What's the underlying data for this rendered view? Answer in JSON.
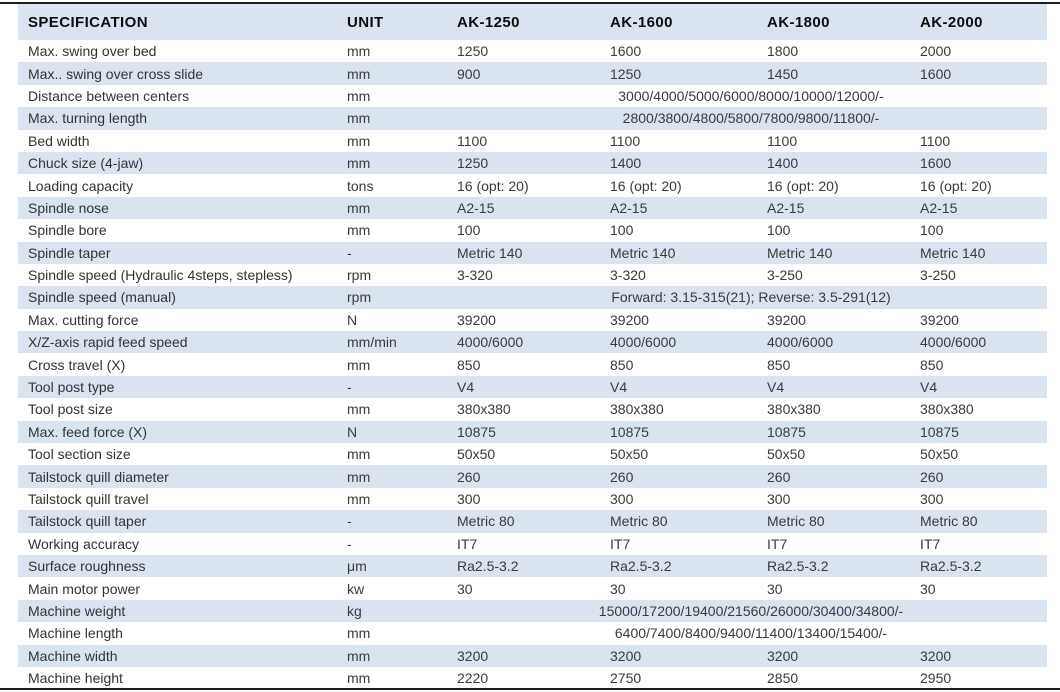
{
  "colors": {
    "stripe_blue": "#d9e4f0",
    "rule_dark": "#1f1f1f",
    "text": "#3a3a3a"
  },
  "table": {
    "headers": [
      "SPECIFICATION",
      "UNIT",
      "AK-1250",
      "AK-1600",
      "AK-1800",
      "AK-2000"
    ],
    "rows": [
      {
        "spec": "Max. swing over bed",
        "unit": "mm",
        "values": [
          "1250",
          "1600",
          "1800",
          "2000"
        ]
      },
      {
        "spec": "Max.. swing over cross slide",
        "unit": "mm",
        "values": [
          "900",
          "1250",
          "1450",
          "1600"
        ]
      },
      {
        "spec": "Distance between centers",
        "unit": "mm",
        "span": "3000/4000/5000/6000/8000/10000/12000/-"
      },
      {
        "spec": "Max. turning length",
        "unit": "mm",
        "span": "2800/3800/4800/5800/7800/9800/11800/-"
      },
      {
        "spec": "Bed width",
        "unit": "mm",
        "values": [
          "1100",
          "1100",
          "1100",
          "1100"
        ]
      },
      {
        "spec": "Chuck size (4-jaw)",
        "unit": "mm",
        "values": [
          "1250",
          "1400",
          "1400",
          "1600"
        ]
      },
      {
        "spec": "Loading capacity",
        "unit": "tons",
        "values": [
          "16 (opt: 20)",
          "16 (opt: 20)",
          "16 (opt: 20)",
          "16 (opt: 20)"
        ]
      },
      {
        "spec": "Spindle nose",
        "unit": "mm",
        "values": [
          "A2-15",
          "A2-15",
          "A2-15",
          "A2-15"
        ]
      },
      {
        "spec": "Spindle bore",
        "unit": "mm",
        "values": [
          "100",
          "100",
          "100",
          "100"
        ]
      },
      {
        "spec": "Spindle taper",
        "unit": "-",
        "values": [
          "Metric 140",
          "Metric 140",
          "Metric 140",
          "Metric 140"
        ]
      },
      {
        "spec": "Spindle speed (Hydraulic 4steps, stepless)",
        "unit": "rpm",
        "values": [
          "3-320",
          "3-320",
          "3-250",
          "3-250"
        ]
      },
      {
        "spec": "Spindle speed (manual)",
        "unit": "rpm",
        "span": "Forward: 3.15-315(21); Reverse: 3.5-291(12)"
      },
      {
        "spec": "Max. cutting force",
        "unit": "N",
        "values": [
          "39200",
          "39200",
          "39200",
          "39200"
        ]
      },
      {
        "spec": "X/Z-axis rapid feed speed",
        "unit": "mm/min",
        "values": [
          "4000/6000",
          "4000/6000",
          "4000/6000",
          "4000/6000"
        ]
      },
      {
        "spec": "Cross travel (X)",
        "unit": "mm",
        "values": [
          "850",
          "850",
          "850",
          "850"
        ]
      },
      {
        "spec": "Tool post type",
        "unit": "-",
        "values": [
          "V4",
          "V4",
          "V4",
          "V4"
        ]
      },
      {
        "spec": "Tool post size",
        "unit": "mm",
        "values": [
          "380x380",
          "380x380",
          "380x380",
          "380x380"
        ]
      },
      {
        "spec": "Max. feed force (X)",
        "unit": "N",
        "values": [
          "10875",
          "10875",
          "10875",
          "10875"
        ]
      },
      {
        "spec": "Tool section size",
        "unit": "mm",
        "values": [
          "50x50",
          "50x50",
          "50x50",
          "50x50"
        ]
      },
      {
        "spec": "Tailstock quill diameter",
        "unit": "mm",
        "values": [
          "260",
          "260",
          "260",
          "260"
        ]
      },
      {
        "spec": "Tailstock quill travel",
        "unit": "mm",
        "values": [
          "300",
          "300",
          "300",
          "300"
        ]
      },
      {
        "spec": "Tailstock quill taper",
        "unit": "-",
        "values": [
          "Metric 80",
          "Metric 80",
          "Metric 80",
          "Metric 80"
        ]
      },
      {
        "spec": "Working accuracy",
        "unit": "-",
        "values": [
          "IT7",
          "IT7",
          "IT7",
          "IT7"
        ]
      },
      {
        "spec": "Surface roughness",
        "unit": "μm",
        "values": [
          "Ra2.5-3.2",
          "Ra2.5-3.2",
          "Ra2.5-3.2",
          "Ra2.5-3.2"
        ]
      },
      {
        "spec": "Main motor power",
        "unit": "kw",
        "values": [
          "30",
          "30",
          "30",
          "30"
        ]
      },
      {
        "spec": "Machine weight",
        "unit": "kg",
        "span": "15000/17200/19400/21560/26000/30400/34800/-"
      },
      {
        "spec": "Machine length",
        "unit": "mm",
        "span": "6400/7400/8400/9400/11400/13400/15400/-"
      },
      {
        "spec": "Machine width",
        "unit": "mm",
        "values": [
          "3200",
          "3200",
          "3200",
          "3200"
        ]
      },
      {
        "spec": "Machine height",
        "unit": "mm",
        "values": [
          "2220",
          "2750",
          "2850",
          "2950"
        ]
      }
    ]
  }
}
